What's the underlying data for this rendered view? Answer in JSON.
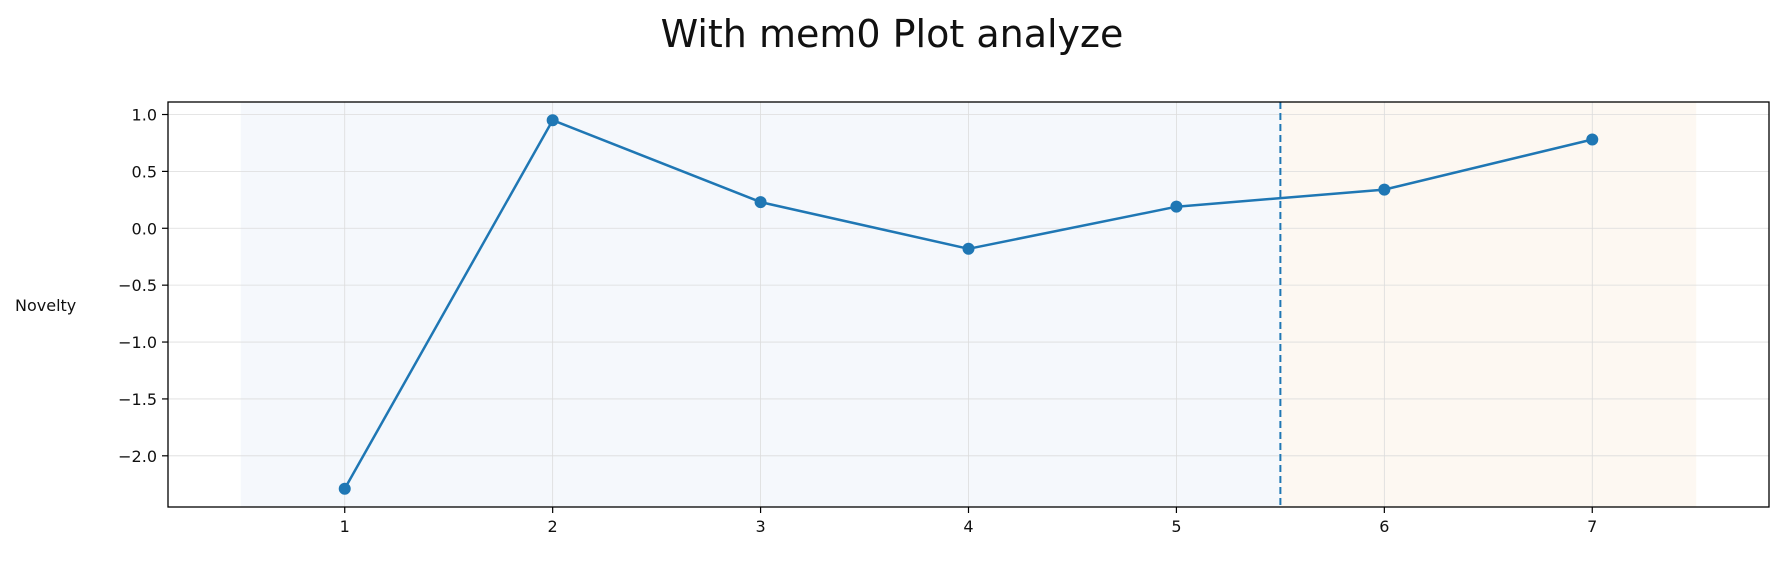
{
  "chart_data": {
    "type": "line",
    "title": "With mem0 Plot analyze",
    "xlabel": "",
    "ylabel": "Novelty",
    "x": [
      1,
      2,
      3,
      4,
      5,
      6,
      7
    ],
    "xlim": [
      0.15,
      7.85
    ],
    "ylim": [
      -2.45,
      1.11
    ],
    "x_ticks": [
      "1",
      "2",
      "3",
      "4",
      "5",
      "6",
      "7"
    ],
    "y_ticks": [
      1.0,
      0.5,
      0.0,
      -0.5,
      -1.0,
      -1.5,
      -2.0
    ],
    "y_tick_labels": [
      "1.0",
      "0.5",
      "0.0",
      "−0.5",
      "−1.0",
      "−1.5",
      "−2.0"
    ],
    "series": [
      {
        "values": [
          -2.29,
          0.95,
          0.23,
          -0.18,
          0.19,
          0.34,
          0.78
        ],
        "color": "#1f77b4"
      }
    ],
    "vertical_line": {
      "x": 5.5,
      "style": "dashed",
      "color": "#1f77b4"
    },
    "shaded_regions": [
      {
        "x_start": 0.5,
        "x_end": 5.5,
        "color": "#f5f8fc"
      },
      {
        "x_start": 5.5,
        "x_end": 7.5,
        "color": "#fdf8f2"
      }
    ],
    "grid": true,
    "legend": "none"
  }
}
